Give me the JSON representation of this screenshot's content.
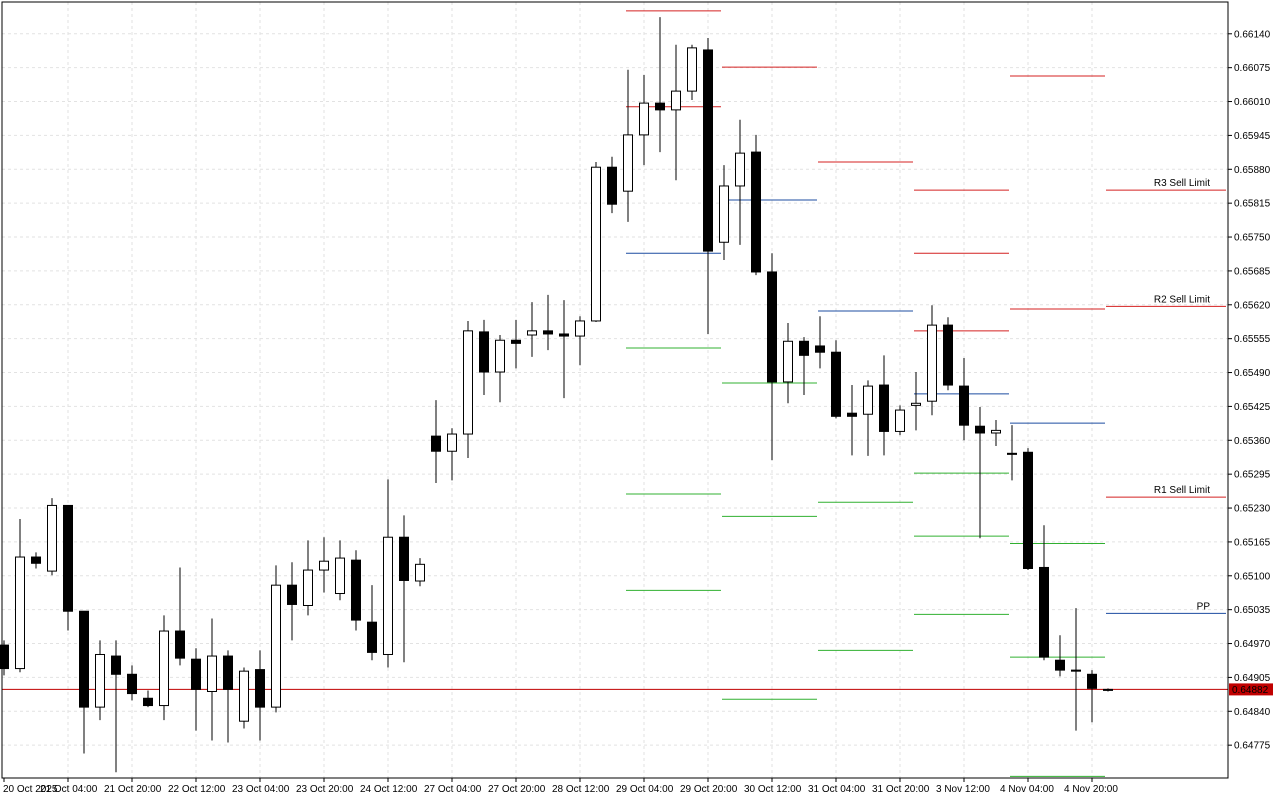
{
  "chart_data": {
    "type": "candlestick",
    "categories": [
      "20 Oct 2025",
      null,
      null,
      null,
      "21 Oct 04:00",
      null,
      null,
      null,
      "21 Oct 20:00",
      null,
      null,
      null,
      "22 Oct 12:00",
      null,
      null,
      null,
      "23 Oct 04:00",
      null,
      null,
      null,
      "23 Oct 20:00",
      null,
      null,
      null,
      "24 Oct 12:00",
      null,
      null,
      null,
      "27 Oct 04:00",
      null,
      null,
      null,
      "27 Oct 20:00",
      null,
      null,
      null,
      "28 Oct 12:00",
      null,
      null,
      null,
      "29 Oct 04:00",
      null,
      null,
      null,
      "29 Oct 20:00",
      null,
      null,
      null,
      "30 Oct 12:00",
      null,
      null,
      null,
      "31 Oct 04:00",
      null,
      null,
      null,
      "31 Oct 20:00",
      null,
      null,
      null,
      "3 Nov 12:00",
      null,
      null,
      null,
      "4 Nov 04:00",
      null,
      null,
      null,
      "4 Nov 20:00",
      null
    ],
    "open": [
      0.64967,
      0.64922,
      0.65136,
      0.65109,
      0.65235,
      0.65032,
      0.64848,
      0.64946,
      0.64911,
      0.64865,
      0.64851,
      0.64994,
      0.6494,
      0.64878,
      0.64946,
      0.64821,
      0.6492,
      0.64848,
      0.65082,
      0.65043,
      0.65111,
      0.65066,
      0.6513,
      0.65011,
      0.64949,
      0.65174,
      0.6509,
      0.65368,
      0.65339,
      0.65372,
      0.65568,
      0.65491,
      0.65552,
      0.65562,
      0.6557,
      0.65564,
      0.6556,
      0.65589,
      0.65884,
      0.65838,
      0.65946,
      0.66007,
      0.65994,
      0.6603,
      0.66109,
      0.6574,
      0.65848,
      0.65913,
      0.65683,
      0.65472,
      0.6555,
      0.65541,
      0.65529,
      0.65412,
      0.6541,
      0.65466,
      0.65377,
      0.65427,
      0.65435,
      0.65581,
      0.65464,
      0.65387,
      0.65374,
      0.65335,
      0.65337,
      0.65116,
      0.64938,
      0.64919,
      0.64911,
      0.64882
    ],
    "high": [
      0.64976,
      0.65209,
      0.65145,
      0.65249,
      0.65235,
      0.65032,
      0.64976,
      0.64976,
      0.64928,
      0.6488,
      0.65024,
      0.65116,
      0.64961,
      0.65018,
      0.64957,
      0.64924,
      0.64957,
      0.6512,
      0.65126,
      0.65168,
      0.65174,
      0.65168,
      0.65149,
      0.65082,
      0.65285,
      0.65216,
      0.65134,
      0.65437,
      0.65383,
      0.65589,
      0.65591,
      0.65562,
      0.65591,
      0.65625,
      0.65639,
      0.65629,
      0.65598,
      0.65894,
      0.65904,
      0.66071,
      0.66061,
      0.66172,
      0.66119,
      0.66119,
      0.66132,
      0.65888,
      0.65975,
      0.65946,
      0.65719,
      0.65585,
      0.65558,
      0.65598,
      0.65552,
      0.65466,
      0.65475,
      0.65523,
      0.65427,
      0.65491,
      0.65619,
      0.65596,
      0.65518,
      0.65424,
      0.65399,
      0.65389,
      0.65345,
      0.65197,
      0.64986,
      0.65038,
      0.64919,
      0.64884
    ],
    "low": [
      0.64909,
      0.64915,
      0.65114,
      0.65101,
      0.64995,
      0.64759,
      0.64823,
      0.64723,
      0.64861,
      0.64848,
      0.64823,
      0.64928,
      0.64803,
      0.64784,
      0.6478,
      0.64807,
      0.64784,
      0.64838,
      0.64976,
      0.65024,
      0.65068,
      0.65053,
      0.64995,
      0.64938,
      0.64924,
      0.64934,
      0.6508,
      0.65278,
      0.65283,
      0.65326,
      0.65447,
      0.65433,
      0.65498,
      0.6552,
      0.65533,
      0.65441,
      0.65504,
      0.65587,
      0.65796,
      0.65779,
      0.65888,
      0.65913,
      0.65859,
      0.66013,
      0.65564,
      0.65706,
      0.65735,
      0.65677,
      0.65322,
      0.65431,
      0.65447,
      0.65498,
      0.65402,
      0.65331,
      0.6533,
      0.65331,
      0.6537,
      0.65379,
      0.65408,
      0.65456,
      0.6536,
      0.65172,
      0.65349,
      0.65283,
      0.65111,
      0.64938,
      0.64907,
      0.64803,
      0.64819,
      0.64878
    ],
    "close": [
      0.64922,
      0.65136,
      0.65124,
      0.65235,
      0.65032,
      0.64848,
      0.64949,
      0.64911,
      0.64874,
      0.64851,
      0.64994,
      0.64942,
      0.64882,
      0.64946,
      0.64882,
      0.64917,
      0.64848,
      0.65082,
      0.65045,
      0.65111,
      0.65128,
      0.65134,
      0.65015,
      0.64953,
      0.65174,
      0.65091,
      0.65122,
      0.65339,
      0.65372,
      0.6557,
      0.65491,
      0.65552,
      0.65546,
      0.6557,
      0.65564,
      0.6556,
      0.65589,
      0.65884,
      0.65813,
      0.65946,
      0.66007,
      0.65994,
      0.6603,
      0.66113,
      0.65723,
      0.65848,
      0.65911,
      0.65683,
      0.65472,
      0.6555,
      0.65523,
      0.65529,
      0.65406,
      0.65406,
      0.65464,
      0.65377,
      0.65418,
      0.65431,
      0.65581,
      0.65466,
      0.65389,
      0.65374,
      0.65379,
      0.65333,
      0.65114,
      0.64944,
      0.64919,
      0.64917,
      0.64884,
      0.64882
    ],
    "up_color": "#ffffff",
    "down_color": "#000000",
    "current_price_color": "#c00000",
    "ylim": [
      0.64712,
      0.66201
    ],
    "yticks": [
      {
        "value": 0.6614,
        "label": "0.66140"
      },
      0.66075,
      {
        "value": 0.6601,
        "label": "0.66010"
      },
      0.65945,
      {
        "value": 0.6588,
        "label": "0.65880"
      },
      0.65815,
      {
        "value": 0.6575,
        "label": "0.65750"
      },
      0.65685,
      {
        "value": 0.6562,
        "label": "0.65620"
      },
      0.65555,
      {
        "value": 0.6549,
        "label": "0.65490"
      },
      0.65425,
      {
        "value": 0.6536,
        "label": "0.65360"
      },
      0.65295,
      {
        "value": 0.6523,
        "label": "0.65230"
      },
      0.65165,
      {
        "value": 0.651,
        "label": "0.65100"
      },
      0.65035,
      {
        "value": 0.6497,
        "label": "0.64970"
      },
      0.64905,
      {
        "value": 0.6484,
        "label": "0.64840"
      },
      0.64775
    ],
    "grid": true,
    "level_colors": {
      "resistance": "#d42020",
      "pivot": "#1c4ca0",
      "support": "#30b030"
    },
    "pivot_days": [
      {
        "levels": [
          {
            "kind": "resistance",
            "value": 0.66184
          },
          {
            "kind": "resistance",
            "value": 0.66
          },
          {
            "kind": "pivot",
            "value": 0.65719
          },
          {
            "kind": "support",
            "value": 0.65537
          },
          {
            "kind": "support",
            "value": 0.65257
          },
          {
            "kind": "support",
            "value": 0.65072
          }
        ]
      },
      {
        "levels": [
          {
            "kind": "resistance",
            "value": 0.66076
          },
          {
            "kind": "pivot",
            "value": 0.65821
          },
          {
            "kind": "support",
            "value": 0.6547
          },
          {
            "kind": "support",
            "value": 0.65214
          },
          {
            "kind": "support",
            "value": 0.64863
          }
        ]
      },
      {
        "levels": [
          {
            "kind": "resistance",
            "value": 0.65894
          },
          {
            "kind": "pivot",
            "value": 0.65608
          },
          {
            "kind": "support",
            "value": 0.65241
          },
          {
            "kind": "support",
            "value": 0.64957
          }
        ]
      },
      {
        "levels": [
          {
            "kind": "resistance",
            "value": 0.6584
          },
          {
            "kind": "resistance",
            "value": 0.65719
          },
          {
            "kind": "resistance",
            "value": 0.6557
          },
          {
            "kind": "pivot",
            "value": 0.65449
          },
          {
            "kind": "support",
            "value": 0.65297
          },
          {
            "kind": "support",
            "value": 0.65176
          },
          {
            "kind": "support",
            "value": 0.65026
          }
        ]
      },
      {
        "levels": [
          {
            "kind": "resistance",
            "value": 0.66059
          },
          {
            "kind": "resistance",
            "value": 0.65612
          },
          {
            "kind": "pivot",
            "value": 0.65393
          },
          {
            "kind": "support",
            "value": 0.65162
          },
          {
            "kind": "support",
            "value": 0.64944
          },
          {
            "kind": "support",
            "value": 0.64715
          }
        ]
      }
    ],
    "order_levels": [
      {
        "label": "R3 Sell Limit",
        "kind": "resistance",
        "value": 0.6584
      },
      {
        "label": "R2 Sell Limit",
        "kind": "resistance",
        "value": 0.65617
      },
      {
        "label": "R1 Sell Limit",
        "kind": "resistance",
        "value": 0.65251
      },
      {
        "label": "PP",
        "kind": "pivot",
        "value": 0.65028
      }
    ]
  }
}
